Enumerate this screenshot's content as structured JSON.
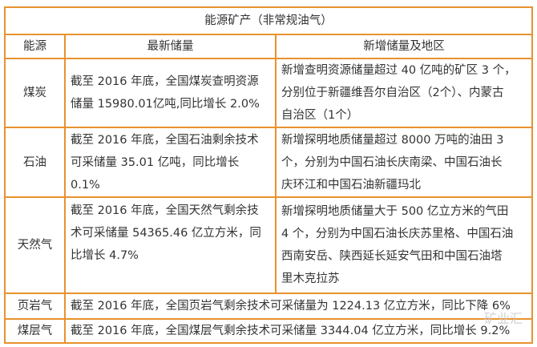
{
  "title": "能源矿产（非常规油气）",
  "headers": [
    "能源",
    "最新储量",
    "新增储量及地区"
  ],
  "rows": [
    {
      "energy": "煤炭",
      "reserve": "截至 2016 年底，全国煤炭查明资源\n储量 15980.01亿吨,同比增长 2.0%",
      "new": "新增查明资源储量超过 40 亿吨的矿区 3 个，\n分别位于新疆维吾尔自治区（2个）、内蒙古\n自治区（1个）"
    },
    {
      "energy": "石油",
      "reserve": "截至 2016 年底，全国石油剩余技术\n可采储量 35.01 亿吨，同比增长\n0.1%",
      "new": "新增探明地质储量超过 8000 万吨的油田 3\n个，分别为中国石油长庆南梁、中国石油长\n庆环江和中国石油新疆玛北"
    },
    {
      "energy": "天然气",
      "reserve": "截至 2016 年底，全国天然气剩余技\n术可采储量 54365.46 亿立方米，同\n比增长 4.7%",
      "new": "新增探明地质储量大于 500 亿立方米的气田\n4 个，分别为中国石油长庆苏里格、中国石油\n西南安岳、陕西延长延安气田和中国石油塔\n里木克拉苏"
    },
    {
      "energy": "页岩气",
      "merged": "截至 2016 年底，全国页岩气剩余技术可采储量为 1224.13 亿立方米，同比下降 6%"
    },
    {
      "energy": "煤层气",
      "merged": "截至 2016 年底，全国煤层气剩余技术可采储量 3344.04 亿立方米，同比增长 9.2%"
    }
  ],
  "watermark": "矿业汇",
  "colors": {
    "border": "#e8922e"
  }
}
